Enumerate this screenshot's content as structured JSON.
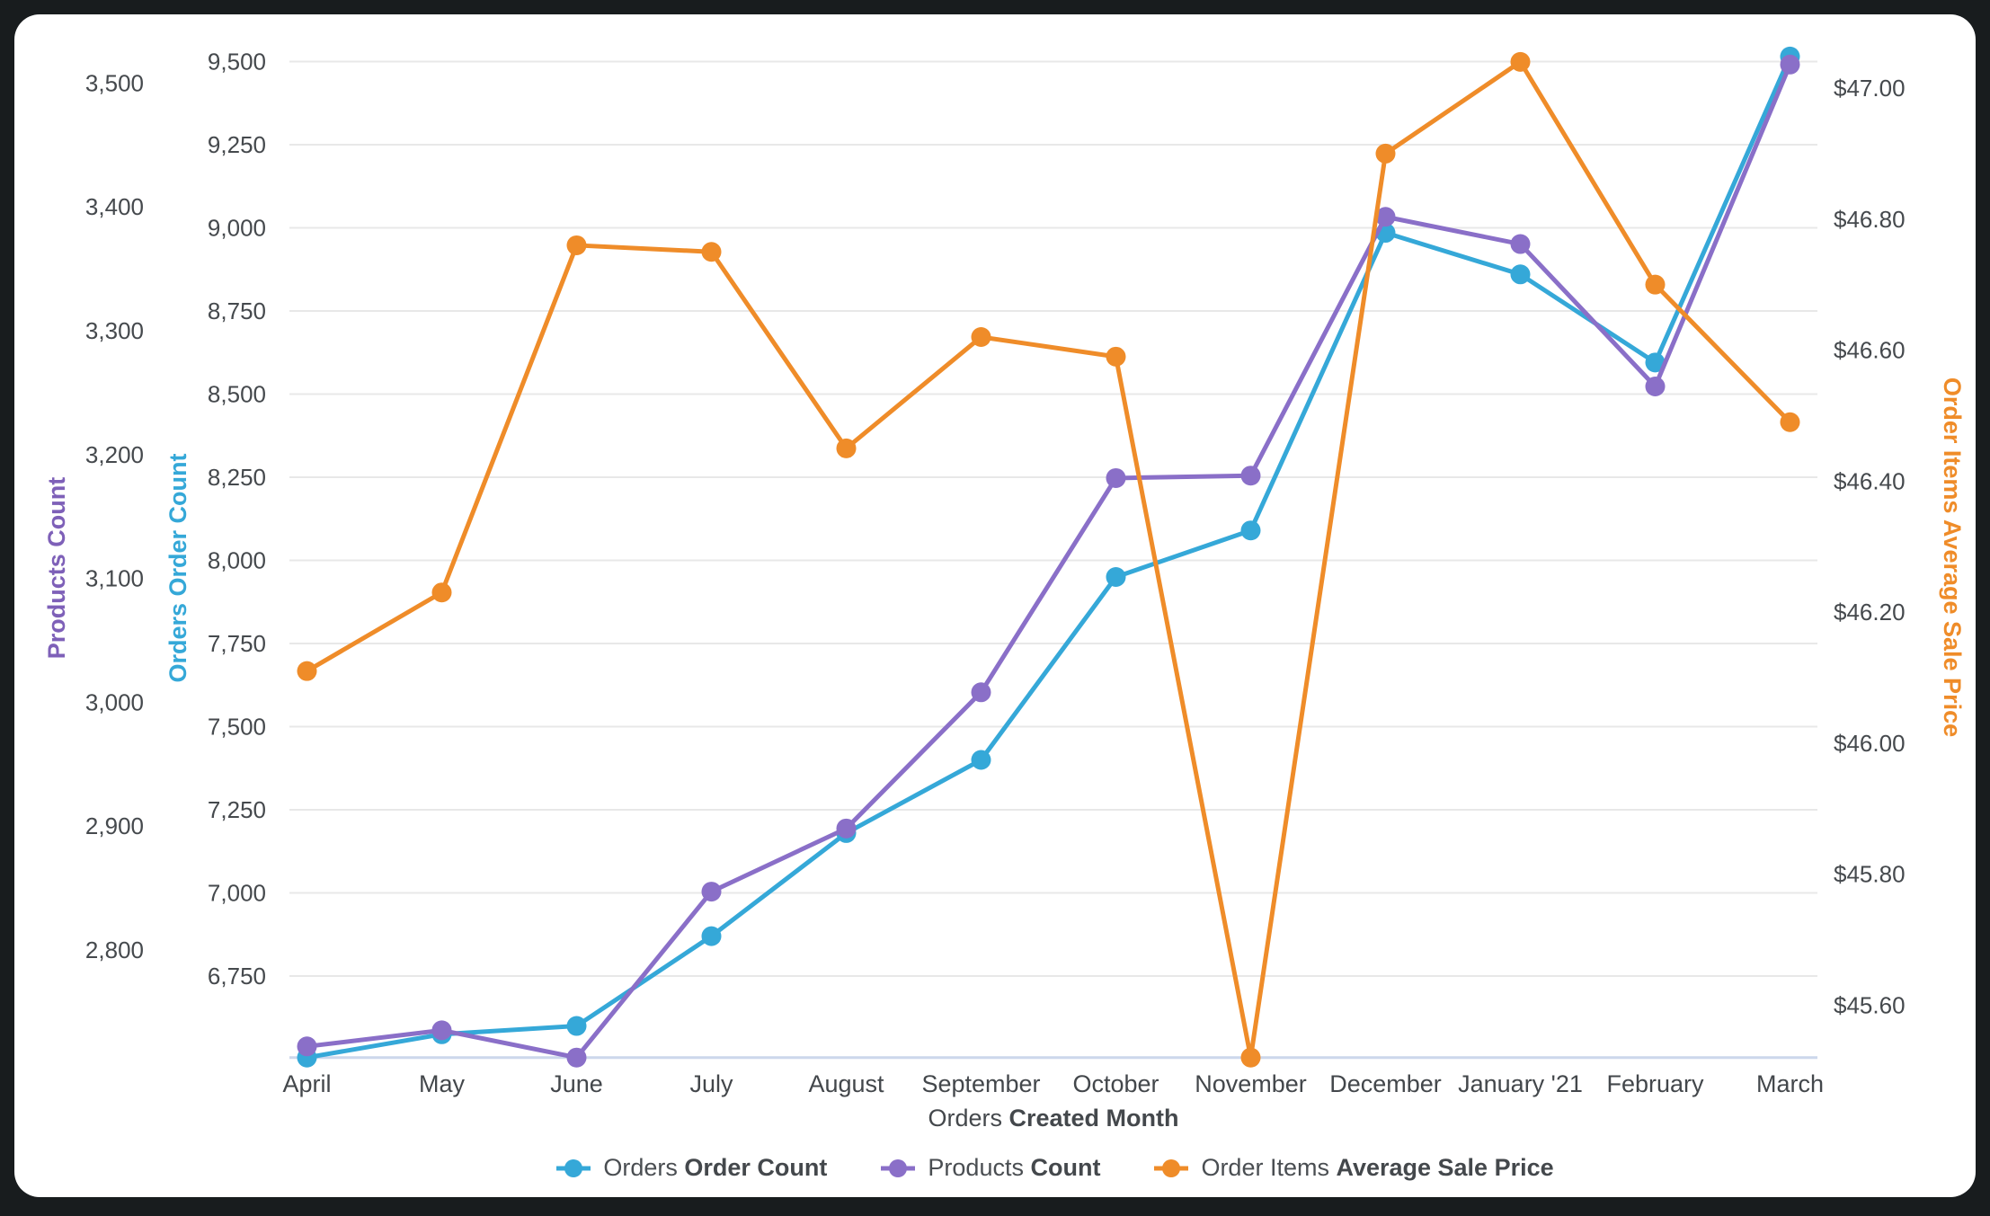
{
  "frame": {
    "background": "#181c1e",
    "card_background": "#ffffff"
  },
  "chart_data": {
    "type": "line",
    "categories": [
      "April",
      "May",
      "June",
      "July",
      "August",
      "September",
      "October",
      "November",
      "December",
      "January '21",
      "February",
      "March"
    ],
    "series": [
      {
        "id": "orders",
        "name_pre": "Orders ",
        "name_bold": "Order Count",
        "axis": "orders",
        "color": "#35a8d8",
        "values": [
          6505,
          6575,
          6600,
          6870,
          7180,
          7400,
          7950,
          8090,
          8985,
          8860,
          8595,
          9515
        ]
      },
      {
        "id": "products",
        "name_pre": "Products ",
        "name_bold": "Count",
        "axis": "products",
        "color": "#8a6fc8",
        "values": [
          2722,
          2735,
          2713,
          2847,
          2898,
          3008,
          3181,
          3183,
          3392,
          3370,
          3255,
          3515
        ]
      },
      {
        "id": "price",
        "name_pre": "Order Items ",
        "name_bold": "Average Sale Price",
        "axis": "price",
        "color": "#ef8c29",
        "values": [
          46.11,
          46.23,
          46.76,
          46.75,
          46.45,
          46.62,
          46.59,
          45.52,
          46.9,
          47.04,
          46.7,
          46.49
        ]
      }
    ],
    "axes": {
      "products": {
        "title": "Products Count",
        "color": "#7e60b8",
        "min": 2713,
        "max": 3533,
        "ticks": [
          2800,
          2900,
          3000,
          3100,
          3200,
          3300,
          3400,
          3500
        ],
        "format": "number"
      },
      "orders": {
        "title": "Orders Order Count",
        "color": "#35a8d8",
        "min": 6505,
        "max": 9558,
        "ticks": [
          6750,
          7000,
          7250,
          7500,
          7750,
          8000,
          8250,
          8500,
          8750,
          9000,
          9250,
          9500
        ],
        "format": "number",
        "gridlines": true
      },
      "price": {
        "title": "Order Items Average Sale Price",
        "color": "#ef8c29",
        "min": 45.52,
        "max": 47.07,
        "ticks": [
          45.6,
          45.8,
          46.0,
          46.2,
          46.4,
          46.6,
          46.8,
          47.0
        ],
        "format": "currency"
      }
    },
    "xlabel_pre": "Orders ",
    "xlabel_bold": "Created Month",
    "legend_position": "bottom",
    "grid_color": "#e8e8e8",
    "baseline_color": "#ccd7ec",
    "tick_text_color": "#45494d",
    "month_text_color": "#43474b"
  }
}
